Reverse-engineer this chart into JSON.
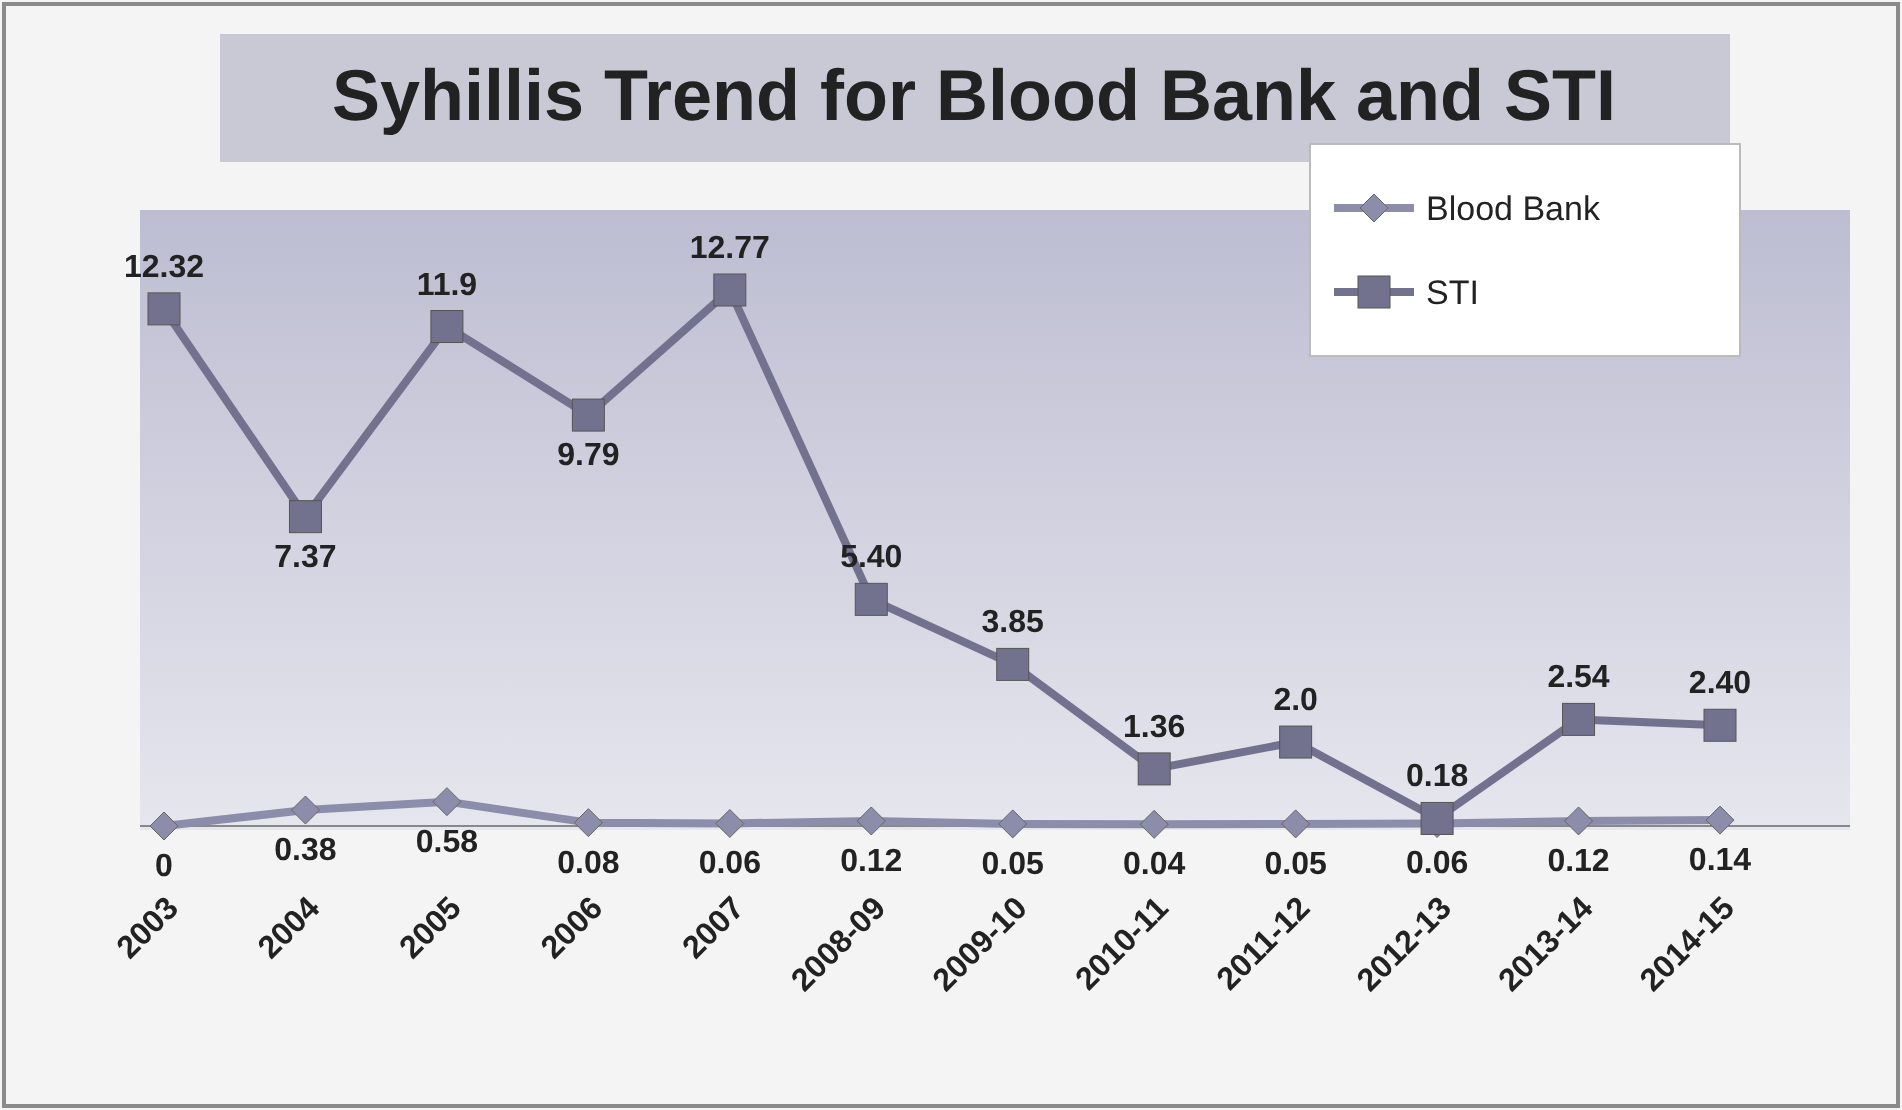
{
  "chart_data": {
    "type": "line",
    "title": "Syhillis  Trend for Blood Bank and STI",
    "categories": [
      "2003",
      "2004",
      "2005",
      "2006",
      "2007",
      "2008-09",
      "2009-10",
      "2010-11",
      "2011-12",
      "2012-13",
      "2013-14",
      "2014-15"
    ],
    "series": [
      {
        "name": "Blood Bank",
        "color": "#8c8cab",
        "marker": "diamond",
        "values": [
          0,
          0.38,
          0.58,
          0.08,
          0.06,
          0.12,
          0.05,
          0.04,
          0.05,
          0.06,
          0.12,
          0.14
        ],
        "value_labels": [
          "0",
          "0.38",
          "0.58",
          "0.08",
          "0.06",
          "0.12",
          "0.05",
          "0.04",
          "0.05",
          "0.06",
          "0.12",
          "0.14"
        ]
      },
      {
        "name": "STI",
        "color": "#72728f",
        "marker": "square",
        "values": [
          12.32,
          7.37,
          11.9,
          9.79,
          12.77,
          5.4,
          3.85,
          1.36,
          2.0,
          0.18,
          2.54,
          2.4
        ],
        "value_labels": [
          "12.32",
          "7.37",
          "11.9",
          "9.79",
          "12.77",
          "5.40",
          "3.85",
          "1.36",
          "2.0",
          "0.18",
          "2.54",
          "2.40"
        ]
      }
    ],
    "legend": "top right",
    "grid": false
  }
}
